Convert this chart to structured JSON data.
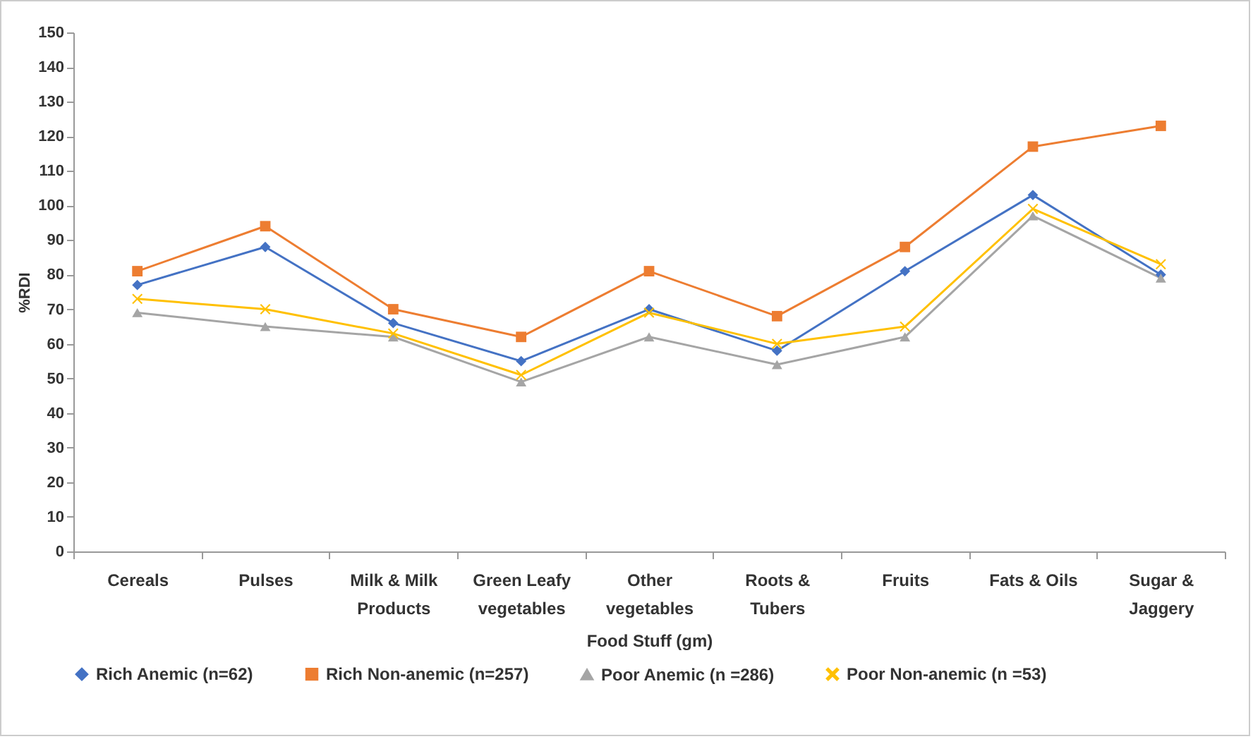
{
  "chart_data": {
    "type": "line",
    "xlabel": "Food Stuff (gm)",
    "ylabel": "%RDI",
    "categories": [
      "Cereals",
      "Pulses",
      "Milk & Milk Products",
      "Green Leafy vegetables",
      "Other vegetables",
      "Roots & Tubers",
      "Fruits",
      "Fats & Oils",
      "Sugar & Jaggery"
    ],
    "series": [
      {
        "name": "Rich Anemic  (n=62)",
        "color": "#4472c4",
        "marker": "diamond",
        "values": [
          77,
          88,
          66,
          55,
          70,
          58,
          81,
          103,
          80
        ]
      },
      {
        "name": "Rich Non-anemic  (n=257)",
        "color": "#ed7d31",
        "marker": "square",
        "values": [
          81,
          94,
          70,
          62,
          81,
          68,
          88,
          117,
          123
        ]
      },
      {
        "name": "Poor Anemic  (n =286)",
        "color": "#a5a5a5",
        "marker": "triangle",
        "values": [
          69,
          65,
          62,
          49,
          62,
          54,
          62,
          97,
          79
        ]
      },
      {
        "name": "Poor Non-anemic  (n =53)",
        "color": "#ffc000",
        "marker": "cross",
        "values": [
          73,
          70,
          63,
          51,
          69,
          60,
          65,
          99,
          83
        ]
      }
    ],
    "ylim": [
      0,
      150
    ],
    "yticks": [
      0,
      10,
      20,
      30,
      40,
      50,
      60,
      70,
      80,
      90,
      100,
      110,
      120,
      130,
      140,
      150
    ],
    "grid": false,
    "legend": "bottom"
  }
}
